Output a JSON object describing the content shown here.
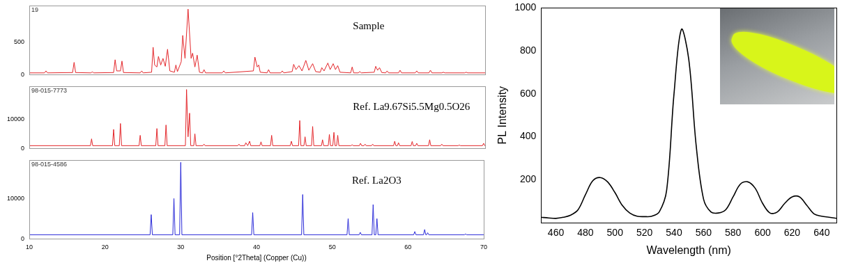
{
  "chart_data": [
    {
      "type": "line",
      "subtitle": "19",
      "title": "Sample",
      "color": "#e3262a",
      "grid": false,
      "tick_labels": "y",
      "xlim": [
        10,
        70
      ],
      "xticks": [
        10,
        20,
        30,
        40,
        50,
        60,
        70
      ],
      "ylim": [
        0,
        1050
      ],
      "yticks": [
        0,
        500
      ],
      "x": [
        10,
        12.0,
        12.2,
        12.4,
        15.7,
        15.9,
        16.1,
        18.1,
        18.3,
        18.5,
        21.1,
        21.3,
        21.5,
        22.0,
        22.2,
        22.4,
        24.6,
        24.8,
        25.0,
        26.1,
        26.3,
        26.5,
        26.8,
        27.0,
        27.3,
        27.6,
        27.9,
        28.2,
        28.5,
        29.1,
        29.3,
        29.5,
        30.0,
        30.2,
        30.5,
        30.9,
        31.3,
        31.5,
        31.8,
        32.1,
        32.4,
        32.8,
        33.0,
        33.2,
        35.4,
        35.6,
        35.8,
        39.5,
        39.7,
        40.0,
        40.2,
        40.4,
        41.3,
        41.5,
        41.7,
        43.1,
        43.3,
        43.5,
        44.6,
        44.8,
        45.1,
        45.5,
        45.9,
        46.4,
        46.8,
        47.3,
        47.7,
        48.3,
        48.5,
        48.8,
        49.3,
        49.6,
        50.0,
        50.3,
        50.6,
        50.9,
        52.3,
        52.5,
        52.7,
        53.3,
        53.5,
        53.7,
        55.4,
        55.6,
        55.85,
        56.1,
        56.4,
        56.9,
        57.1,
        57.3,
        58.6,
        58.8,
        59.0,
        60.8,
        61.0,
        61.2,
        62.6,
        62.8,
        63.0,
        64.3,
        64.5,
        64.7,
        67.3,
        67.5,
        67.7,
        70
      ],
      "values": [
        30,
        30,
        60,
        30,
        35,
        190,
        35,
        30,
        45,
        30,
        35,
        230,
        60,
        60,
        210,
        35,
        30,
        60,
        30,
        40,
        420,
        150,
        120,
        280,
        150,
        250,
        130,
        390,
        60,
        40,
        150,
        50,
        200,
        600,
        250,
        1000,
        250,
        330,
        120,
        300,
        40,
        30,
        80,
        30,
        30,
        60,
        30,
        60,
        270,
        120,
        150,
        40,
        30,
        80,
        30,
        30,
        60,
        30,
        50,
        160,
        80,
        140,
        60,
        220,
        70,
        170,
        50,
        40,
        110,
        60,
        180,
        80,
        170,
        80,
        140,
        40,
        30,
        120,
        30,
        30,
        50,
        30,
        40,
        130,
        70,
        110,
        35,
        30,
        60,
        30,
        30,
        70,
        30,
        30,
        60,
        30,
        30,
        70,
        30,
        30,
        40,
        30,
        30,
        40,
        30,
        30
      ]
    },
    {
      "type": "line",
      "subtitle": "98-015-7773",
      "title": "Ref. La9.67Si5.5Mg0.5O26",
      "color": "#e3262a",
      "grid": false,
      "tick_labels": "y",
      "xlim": [
        10,
        70
      ],
      "xticks": [
        10,
        20,
        30,
        40,
        50,
        60,
        70
      ],
      "ylim": [
        0,
        21000
      ],
      "yticks": [
        0,
        10000
      ],
      "x": [
        10,
        18.05,
        18.2,
        18.35,
        20.95,
        21.1,
        21.25,
        21.85,
        22.0,
        22.15,
        24.45,
        24.6,
        24.75,
        26.65,
        26.8,
        26.95,
        27.85,
        28.0,
        28.15,
        30.55,
        30.7,
        30.9,
        31.1,
        31.25,
        31.65,
        31.8,
        31.95,
        32.85,
        33.0,
        33.15,
        37.45,
        37.6,
        37.75,
        38.35,
        38.5,
        38.75,
        39.0,
        39.15,
        40.35,
        40.5,
        40.65,
        41.75,
        41.9,
        42.05,
        44.35,
        44.5,
        44.65,
        45.45,
        45.6,
        45.75,
        46.15,
        46.3,
        46.45,
        47.15,
        47.3,
        47.45,
        48.45,
        48.6,
        48.75,
        49.35,
        49.5,
        49.65,
        49.95,
        50.1,
        50.25,
        50.45,
        50.6,
        50.75,
        52.35,
        52.5,
        52.65,
        53.45,
        53.6,
        53.75,
        54.05,
        54.2,
        54.35,
        55.05,
        55.2,
        55.35,
        57.95,
        58.1,
        58.25,
        58.45,
        58.6,
        58.75,
        60.25,
        60.4,
        60.55,
        60.85,
        61.0,
        61.15,
        62.55,
        62.7,
        62.85,
        64.15,
        64.3,
        64.45,
        66.45,
        66.6,
        66.75,
        69.65,
        69.8,
        69.95,
        70
      ],
      "values": [
        1000,
        1000,
        3300,
        1000,
        1000,
        6500,
        1000,
        1000,
        8500,
        1000,
        1000,
        4500,
        1000,
        1000,
        6800,
        1000,
        1000,
        8000,
        1000,
        1000,
        20000,
        4000,
        12000,
        1000,
        1000,
        5000,
        1000,
        1000,
        1500,
        1000,
        1000,
        1500,
        1000,
        1000,
        2000,
        1000,
        2500,
        1000,
        1000,
        2300,
        1000,
        1000,
        4500,
        1000,
        1000,
        2500,
        1000,
        1000,
        9500,
        1000,
        1000,
        4000,
        1000,
        1000,
        7500,
        1000,
        1000,
        3000,
        1000,
        1000,
        4800,
        1000,
        1000,
        5500,
        1000,
        1000,
        4500,
        1000,
        1000,
        1300,
        1000,
        1000,
        1800,
        1000,
        1000,
        1500,
        1000,
        1000,
        1500,
        1000,
        1000,
        2500,
        1000,
        1000,
        2000,
        1000,
        1000,
        2400,
        1000,
        1000,
        1800,
        1000,
        1000,
        3000,
        1000,
        1000,
        1500,
        1000,
        1000,
        1200,
        1000,
        1000,
        1800,
        1000,
        1000
      ]
    },
    {
      "type": "line",
      "subtitle": "98-015-4586",
      "title": "Ref. La2O3",
      "color": "#2a2ad8",
      "grid": false,
      "xlabel": "Position [°2Theta] (Copper (Cu))",
      "xlim": [
        10,
        70
      ],
      "xticks": [
        10,
        20,
        30,
        40,
        50,
        60,
        70
      ],
      "ylim": [
        0,
        19500
      ],
      "yticks": [
        0,
        10000
      ],
      "x": [
        10,
        25.95,
        26.1,
        26.25,
        28.95,
        29.1,
        29.25,
        29.85,
        30.0,
        30.15,
        39.35,
        39.5,
        39.65,
        45.95,
        46.1,
        46.25,
        51.95,
        52.1,
        52.25,
        53.55,
        53.7,
        53.85,
        55.25,
        55.4,
        55.55,
        55.75,
        55.9,
        56.05,
        60.75,
        60.9,
        61.05,
        62.05,
        62.2,
        62.35,
        62.45,
        62.6,
        62.75,
        67.45,
        67.6,
        67.75,
        70
      ],
      "values": [
        1000,
        1000,
        6000,
        1000,
        1000,
        10000,
        1000,
        1000,
        19000,
        1000,
        1000,
        6500,
        1000,
        1000,
        11000,
        1000,
        1000,
        5000,
        1000,
        1000,
        1600,
        1000,
        1000,
        8500,
        1000,
        1000,
        5000,
        1000,
        1000,
        1800,
        1000,
        1000,
        2300,
        1000,
        1000,
        1500,
        1000,
        1000,
        1200,
        1000,
        1000
      ]
    },
    {
      "type": "line",
      "color": "#000000",
      "grid": false,
      "xlabel": "Wavelength (nm)",
      "ylabel": "PL Intensity",
      "xlim": [
        450,
        650
      ],
      "xticks": [
        460,
        480,
        500,
        520,
        540,
        560,
        580,
        600,
        620,
        640
      ],
      "ylim": [
        0,
        1000
      ],
      "yticks": [
        200,
        400,
        600,
        800,
        1000
      ],
      "x": [
        450,
        455,
        460,
        465,
        470,
        475,
        480,
        485,
        490,
        495,
        500,
        505,
        510,
        515,
        520,
        525,
        530,
        535,
        540,
        545,
        550,
        555,
        560,
        565,
        570,
        575,
        580,
        585,
        590,
        595,
        600,
        605,
        610,
        615,
        620,
        625,
        630,
        635,
        640,
        645,
        650
      ],
      "values": [
        25,
        22,
        20,
        25,
        35,
        60,
        130,
        195,
        210,
        190,
        140,
        80,
        45,
        30,
        28,
        30,
        50,
        150,
        600,
        900,
        760,
        360,
        110,
        50,
        45,
        60,
        120,
        180,
        190,
        160,
        90,
        45,
        50,
        90,
        120,
        120,
        80,
        40,
        30,
        25,
        20
      ]
    }
  ]
}
